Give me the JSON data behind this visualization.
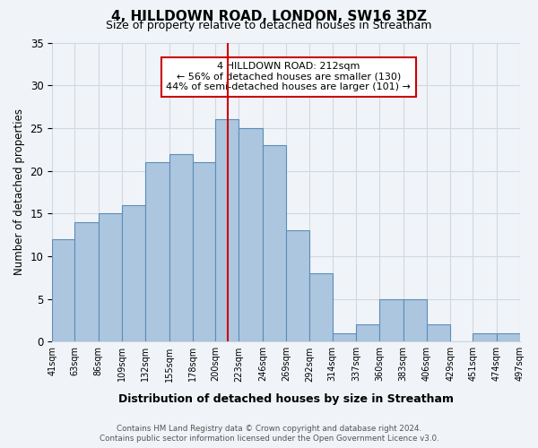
{
  "title": "4, HILLDOWN ROAD, LONDON, SW16 3DZ",
  "subtitle": "Size of property relative to detached houses in Streatham",
  "xlabel": "Distribution of detached houses by size in Streatham",
  "ylabel": "Number of detached properties",
  "bin_labels": [
    "41sqm",
    "63sqm",
    "86sqm",
    "109sqm",
    "132sqm",
    "155sqm",
    "178sqm",
    "200sqm",
    "223sqm",
    "246sqm",
    "269sqm",
    "292sqm",
    "314sqm",
    "337sqm",
    "360sqm",
    "383sqm",
    "406sqm",
    "429sqm",
    "451sqm",
    "474sqm",
    "497sqm"
  ],
  "bin_edges": [
    41,
    63,
    86,
    109,
    132,
    155,
    178,
    200,
    223,
    246,
    269,
    292,
    314,
    337,
    360,
    383,
    406,
    429,
    451,
    474,
    497
  ],
  "values": [
    12,
    14,
    15,
    16,
    21,
    22,
    21,
    26,
    25,
    23,
    13,
    8,
    1,
    2,
    5,
    5,
    2,
    0,
    1,
    1
  ],
  "bar_color": "#adc6e0",
  "bar_edge_color": "#5b8db8",
  "vline_x": 212,
  "vline_color": "#cc0000",
  "annotation_line1": "4 HILLDOWN ROAD: 212sqm",
  "annotation_line2": "← 56% of detached houses are smaller (130)",
  "annotation_line3": "44% of semi-detached houses are larger (101) →",
  "annotation_box_color": "#ffffff",
  "annotation_box_edge_color": "#cc0000",
  "ylim": [
    0,
    35
  ],
  "yticks": [
    0,
    5,
    10,
    15,
    20,
    25,
    30,
    35
  ],
  "footer1": "Contains HM Land Registry data © Crown copyright and database right 2024.",
  "footer2": "Contains public sector information licensed under the Open Government Licence v3.0.",
  "background_color": "#f0f4f8",
  "grid_color": "#d0d8e0"
}
